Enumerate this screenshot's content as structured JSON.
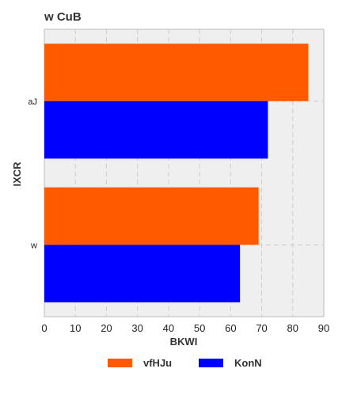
{
  "chart_data": {
    "type": "bar",
    "orientation": "horizontal",
    "title": "w CuB",
    "xlabel": "BKWI",
    "ylabel": "IXCR",
    "categories": [
      "aJ",
      "w"
    ],
    "series": [
      {
        "name": "vfHJu",
        "values": [
          85,
          69
        ],
        "color": "#ff5a00"
      },
      {
        "name": "KonN",
        "values": [
          72,
          63
        ],
        "color": "#0000ff"
      }
    ],
    "xlim": [
      0,
      90
    ],
    "xticks": [
      0,
      10,
      20,
      30,
      40,
      50,
      60,
      70,
      80,
      90
    ],
    "grid": true,
    "legend_position": "bottom-center"
  }
}
